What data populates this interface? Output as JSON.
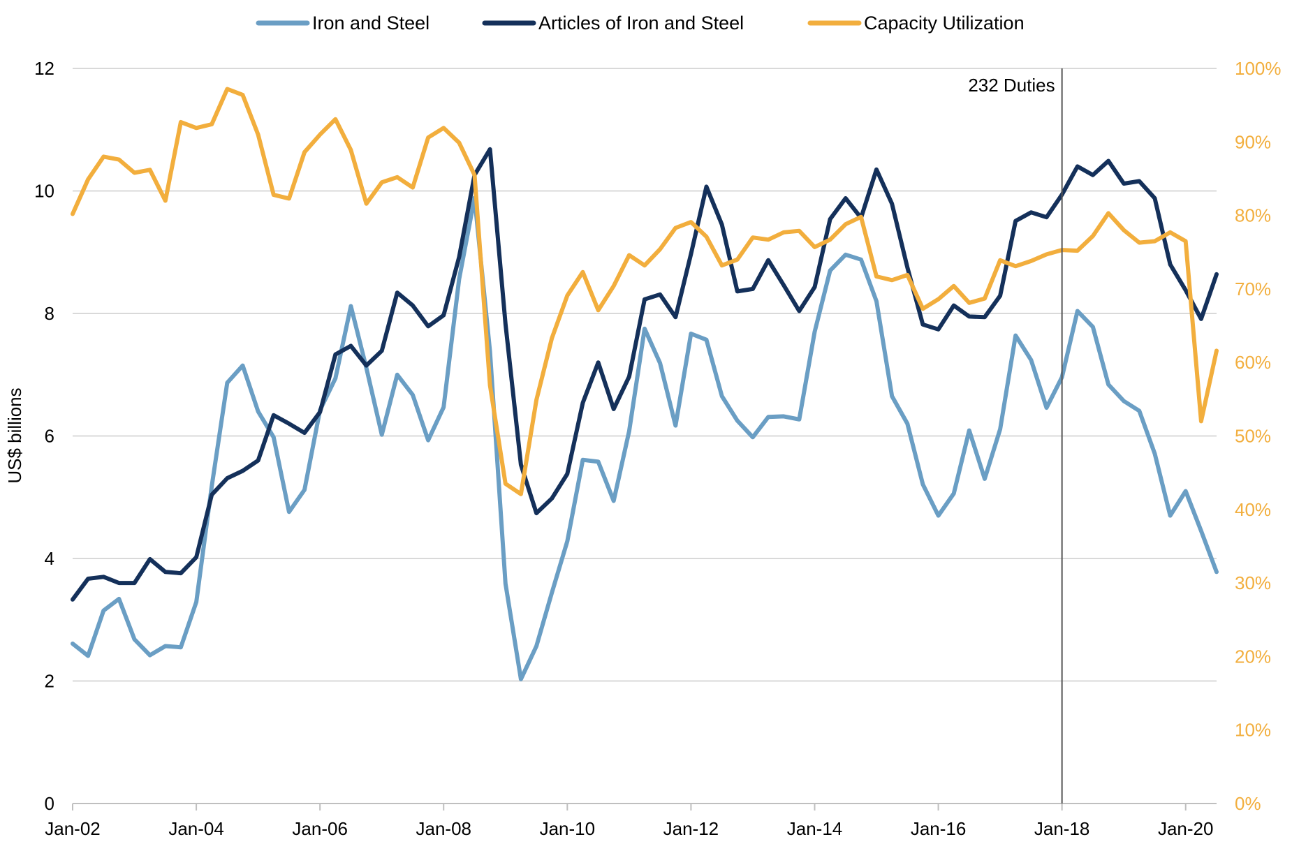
{
  "chart_data": {
    "type": "line",
    "title": "",
    "ylabel": "US$ billions",
    "xlabel": "",
    "ylim": [
      0,
      12
    ],
    "y2lim": [
      0,
      100
    ],
    "yticks": [
      "0",
      "2",
      "4",
      "6",
      "8",
      "10",
      "12"
    ],
    "y2ticks": [
      "0%",
      "10%",
      "20%",
      "30%",
      "40%",
      "50%",
      "60%",
      "70%",
      "80%",
      "90%",
      "100%"
    ],
    "xticks": [
      "Jan-02",
      "Jan-04",
      "Jan-06",
      "Jan-08",
      "Jan-10",
      "Jan-12",
      "Jan-14",
      "Jan-16",
      "Jan-18",
      "Jan-20"
    ],
    "x_start_year": 2002,
    "x_step_quarters": 1,
    "grid": true,
    "legend_position": "top",
    "annotation": {
      "label": "232 Duties",
      "x_year": 2018.0
    },
    "colors": {
      "iron": "#6a9ec4",
      "articles": "#14305a",
      "capacity": "#f2ae3d",
      "right_axis": "#f2ae3d",
      "grid": "#d9d9d9",
      "annotation_line": "#555555"
    },
    "series": [
      {
        "name": "Iron and Steel",
        "axis": "left",
        "values": [
          2.61,
          2.41,
          3.15,
          3.34,
          2.68,
          2.42,
          2.57,
          2.55,
          3.29,
          5.18,
          6.87,
          7.15,
          6.4,
          5.98,
          4.76,
          5.12,
          6.42,
          6.94,
          8.12,
          7.11,
          6.02,
          7.0,
          6.67,
          5.93,
          6.47,
          8.56,
          9.89,
          7.38,
          3.59,
          2.03,
          2.57,
          3.44,
          4.28,
          5.61,
          5.58,
          4.94,
          6.08,
          7.75,
          7.19,
          6.17,
          7.67,
          7.57,
          6.65,
          6.25,
          5.98,
          6.31,
          6.32,
          6.27,
          7.7,
          8.7,
          8.96,
          8.88,
          8.2,
          6.65,
          6.2,
          5.21,
          4.7,
          5.06,
          6.09,
          5.3,
          6.11,
          7.64,
          7.24,
          6.46,
          6.96,
          8.04,
          7.78,
          6.84,
          6.57,
          6.41,
          5.71,
          4.7,
          5.1,
          4.45,
          3.78
        ]
      },
      {
        "name": "Articles of Iron and Steel",
        "axis": "left",
        "values": [
          3.33,
          3.67,
          3.7,
          3.6,
          3.6,
          3.99,
          3.78,
          3.76,
          4.02,
          5.04,
          5.31,
          5.43,
          5.6,
          6.34,
          6.2,
          6.05,
          6.39,
          7.33,
          7.47,
          7.15,
          7.39,
          8.34,
          8.13,
          7.79,
          7.97,
          8.92,
          10.26,
          10.68,
          7.83,
          5.53,
          4.74,
          4.98,
          5.38,
          6.54,
          7.2,
          6.44,
          6.97,
          8.23,
          8.31,
          7.94,
          8.97,
          10.07,
          9.45,
          8.36,
          8.4,
          8.87,
          8.46,
          8.04,
          8.43,
          9.54,
          9.88,
          9.56,
          10.35,
          9.79,
          8.75,
          7.82,
          7.74,
          8.13,
          7.95,
          7.94,
          8.29,
          9.51,
          9.65,
          9.57,
          9.94,
          10.4,
          10.26,
          10.49,
          10.12,
          10.16,
          9.88,
          8.8,
          8.38,
          7.91,
          8.64
        ]
      },
      {
        "name": "Capacity Utilization",
        "axis": "right",
        "values": [
          80.2,
          84.9,
          88.0,
          87.6,
          85.8,
          86.2,
          82.0,
          92.7,
          91.9,
          92.4,
          97.2,
          96.4,
          91.0,
          82.8,
          82.3,
          88.6,
          91.0,
          93.1,
          88.9,
          81.6,
          84.5,
          85.2,
          83.8,
          90.6,
          91.9,
          89.9,
          85.5,
          56.9,
          43.5,
          42.1,
          54.9,
          63.3,
          69.1,
          72.3,
          67.1,
          70.4,
          74.6,
          73.2,
          75.4,
          78.3,
          79.1,
          77.1,
          73.2,
          74.0,
          77.0,
          76.7,
          77.7,
          77.9,
          75.7,
          76.7,
          78.8,
          79.8,
          71.7,
          71.2,
          71.9,
          67.3,
          68.6,
          70.4,
          68.1,
          68.7,
          73.9,
          73.1,
          73.8,
          74.7,
          75.3,
          75.2,
          77.2,
          80.3,
          78.0,
          76.3,
          76.5,
          77.7,
          76.5,
          52.0,
          61.6
        ]
      }
    ]
  }
}
